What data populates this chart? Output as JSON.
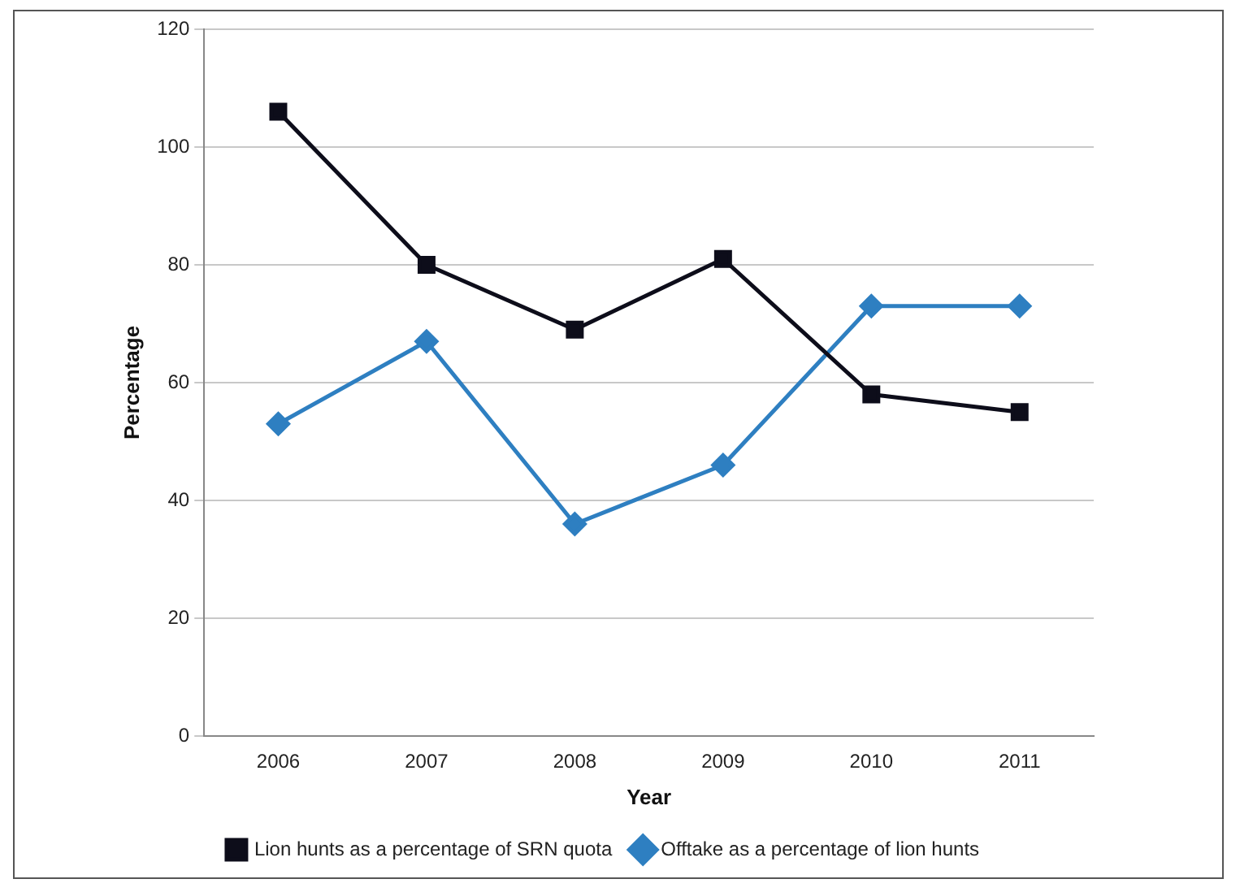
{
  "chart_data": {
    "type": "line",
    "xlabel": "Year",
    "ylabel": "Percentage",
    "categories": [
      "2006",
      "2007",
      "2008",
      "2009",
      "2010",
      "2011"
    ],
    "series": [
      {
        "name": "Lion hunts as a percentage of SRN quota",
        "color": "#0d0d1a",
        "values": [
          106,
          80,
          69,
          81,
          58,
          55
        ],
        "marker": "square"
      },
      {
        "name": "Offtake as a percentage of lion hunts",
        "color": "#2e7fc1",
        "values": [
          53,
          67,
          36,
          46,
          73,
          73
        ],
        "marker": "diamond"
      }
    ],
    "ylim": [
      0,
      120
    ],
    "yticks": [
      0,
      20,
      40,
      60,
      80,
      100,
      120
    ],
    "grid": "y",
    "legend": "bottom",
    "line_style": "solid"
  }
}
